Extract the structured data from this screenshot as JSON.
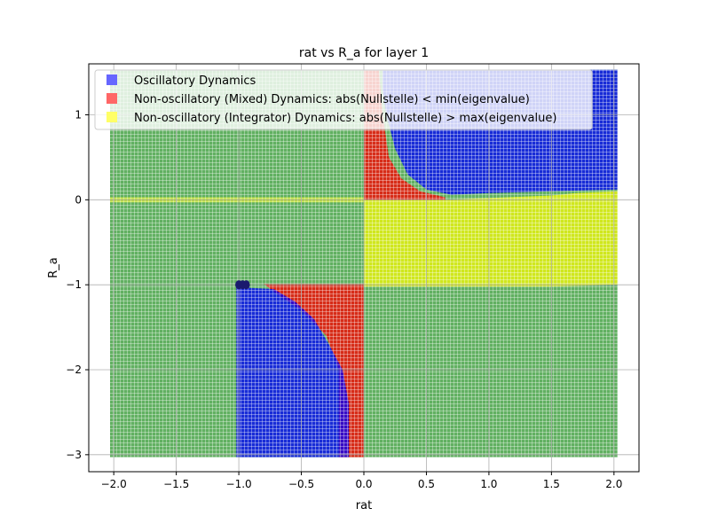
{
  "chart_data": {
    "type": "scatter",
    "title": "rat vs R_a for layer 1",
    "xlabel": "rat",
    "ylabel": "R_a",
    "xlim": [
      -2.2,
      2.2
    ],
    "ylim": [
      -3.2,
      1.6
    ],
    "xticks": [
      -2.0,
      -1.5,
      -1.0,
      -0.5,
      0.0,
      0.5,
      1.0,
      1.5,
      2.0
    ],
    "xtick_labels": [
      "−2.0",
      "−1.5",
      "−1.0",
      "−0.5",
      "0.0",
      "0.5",
      "1.0",
      "1.5",
      "2.0"
    ],
    "yticks": [
      -3,
      -2,
      -1,
      0,
      1
    ],
    "ytick_labels": [
      "−3",
      "−2",
      "−1",
      "0",
      "1"
    ],
    "grid": true,
    "legend_placement": "upper-left",
    "series": [
      {
        "name": "Oscillatory Dynamics",
        "color": "#0000ff",
        "regions": [
          {
            "x_range": [
              0.15,
              2.0
            ],
            "y_range": [
              0.1,
              1.5
            ],
            "description_values": "upper-right quadrant, boundary curve from (0.15,1.5) through (0.3,0.3) to (0.65,0.05)"
          },
          {
            "x_range": [
              -1.0,
              -0.12
            ],
            "y_range": [
              -3.0,
              -1.05
            ],
            "description_values": "lower-left region, boundary curve from (-0.7,-1.05) through (-0.35,-1.6) to (-0.12,-3.0)"
          }
        ]
      },
      {
        "name": "Non-oscillatory (Mixed) Dynamics: abs(Nullstelle) < min(eigenvalue)",
        "color": "#ff0000",
        "regions": [
          {
            "x_range": [
              0.0,
              0.65
            ],
            "y_range": [
              0.0,
              1.5
            ]
          },
          {
            "x_range": [
              -0.8,
              0.0
            ],
            "y_range": [
              -3.0,
              -1.0
            ]
          }
        ]
      },
      {
        "name": "Non-oscillatory (Integrator) Dynamics: abs(Nullstelle) > max(eigenvalue)",
        "color": "#ffff00",
        "regions": [
          {
            "x_range": [
              0.0,
              2.0
            ],
            "y_range": [
              -1.0,
              0.05
            ]
          }
        ]
      }
    ],
    "background_series_color": "#008000",
    "point_grid": {
      "x_range": [
        -2.0,
        2.0
      ],
      "y_range": [
        -3.0,
        1.5
      ]
    }
  }
}
